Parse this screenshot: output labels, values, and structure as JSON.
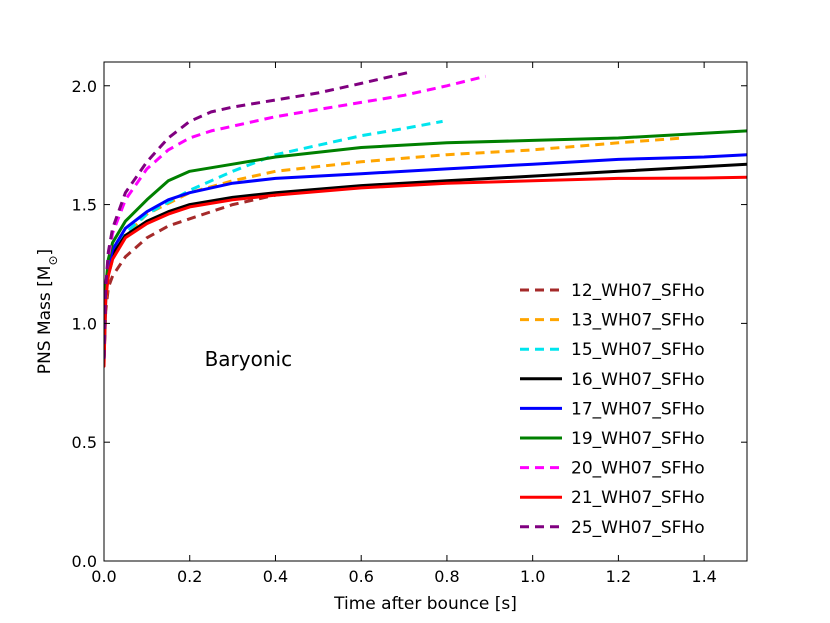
{
  "chart_data": {
    "type": "line",
    "xlabel": "Time after bounce [s]",
    "ylabel": "PNS Mass [M",
    "ylabel_sub": "⊙",
    "ylabel_close": "]",
    "xlim": [
      0,
      1.5
    ],
    "ylim": [
      0,
      2.1
    ],
    "xticks": [
      0.0,
      0.2,
      0.4,
      0.6,
      0.8,
      1.0,
      1.2,
      1.4
    ],
    "xtick_labels": [
      "0.0",
      "0.2",
      "0.4",
      "0.6",
      "0.8",
      "1.0",
      "1.2",
      "1.4"
    ],
    "yticks": [
      0.0,
      0.5,
      1.0,
      1.5,
      2.0
    ],
    "ytick_labels": [
      "0.0",
      "0.5",
      "1.0",
      "1.5",
      "2.0"
    ],
    "grid": false,
    "legend_position": "lower-right",
    "annotation": {
      "text": "Baryonic",
      "x": 0.43,
      "y": 0.85
    },
    "series": [
      {
        "name": "12_WH07_SFHo",
        "color": "#a52a2a",
        "dash": true,
        "x": [
          0,
          0.004,
          0.01,
          0.02,
          0.05,
          0.1,
          0.15,
          0.2,
          0.3,
          0.4,
          0.5
        ],
        "y": [
          0.85,
          1.05,
          1.15,
          1.2,
          1.28,
          1.36,
          1.41,
          1.44,
          1.5,
          1.54,
          1.56
        ]
      },
      {
        "name": "13_WH07_SFHo",
        "color": "#ffa500",
        "dash": true,
        "x": [
          0,
          0.004,
          0.01,
          0.02,
          0.05,
          0.1,
          0.2,
          0.3,
          0.4,
          0.6,
          0.8,
          1.0,
          1.2,
          1.35
        ],
        "y": [
          0.85,
          1.08,
          1.2,
          1.27,
          1.37,
          1.46,
          1.55,
          1.6,
          1.64,
          1.68,
          1.71,
          1.73,
          1.76,
          1.78
        ]
      },
      {
        "name": "15_WH07_SFHo",
        "color": "#00e5ee",
        "dash": true,
        "x": [
          0,
          0.004,
          0.01,
          0.02,
          0.05,
          0.1,
          0.15,
          0.2,
          0.3,
          0.4,
          0.5,
          0.6,
          0.7,
          0.79
        ],
        "y": [
          0.85,
          1.1,
          1.22,
          1.3,
          1.38,
          1.46,
          1.51,
          1.56,
          1.64,
          1.71,
          1.75,
          1.79,
          1.82,
          1.85
        ]
      },
      {
        "name": "16_WH07_SFHo",
        "color": "#000000",
        "dash": false,
        "x": [
          0,
          0.004,
          0.01,
          0.02,
          0.05,
          0.1,
          0.15,
          0.2,
          0.3,
          0.4,
          0.6,
          0.8,
          1.0,
          1.2,
          1.4,
          1.5
        ],
        "y": [
          0.85,
          1.1,
          1.22,
          1.29,
          1.37,
          1.43,
          1.47,
          1.5,
          1.53,
          1.55,
          1.58,
          1.6,
          1.62,
          1.64,
          1.66,
          1.67
        ]
      },
      {
        "name": "17_WH07_SFHo",
        "color": "#0000ff",
        "dash": false,
        "x": [
          0,
          0.004,
          0.01,
          0.02,
          0.05,
          0.1,
          0.15,
          0.2,
          0.3,
          0.4,
          0.6,
          0.8,
          1.0,
          1.2,
          1.4,
          1.5
        ],
        "y": [
          0.85,
          1.12,
          1.24,
          1.31,
          1.4,
          1.47,
          1.52,
          1.55,
          1.59,
          1.61,
          1.63,
          1.65,
          1.67,
          1.69,
          1.7,
          1.71
        ]
      },
      {
        "name": "19_WH07_SFHo",
        "color": "#008000",
        "dash": false,
        "x": [
          0,
          0.004,
          0.01,
          0.02,
          0.05,
          0.1,
          0.15,
          0.2,
          0.3,
          0.4,
          0.6,
          0.8,
          1.0,
          1.2,
          1.4,
          1.5
        ],
        "y": [
          0.85,
          1.15,
          1.27,
          1.34,
          1.43,
          1.52,
          1.6,
          1.64,
          1.67,
          1.7,
          1.74,
          1.76,
          1.77,
          1.78,
          1.8,
          1.81
        ]
      },
      {
        "name": "20_WH07_SFHo",
        "color": "#ff00ff",
        "dash": true,
        "x": [
          0,
          0.004,
          0.01,
          0.02,
          0.05,
          0.1,
          0.15,
          0.2,
          0.25,
          0.3,
          0.4,
          0.5,
          0.6,
          0.7,
          0.8,
          0.89
        ],
        "y": [
          0.85,
          1.15,
          1.28,
          1.38,
          1.52,
          1.65,
          1.73,
          1.78,
          1.81,
          1.83,
          1.87,
          1.9,
          1.93,
          1.96,
          2.0,
          2.04
        ]
      },
      {
        "name": "21_WH07_SFHo",
        "color": "#ff0000",
        "dash": false,
        "x": [
          0,
          0.004,
          0.01,
          0.02,
          0.05,
          0.1,
          0.15,
          0.2,
          0.3,
          0.4,
          0.6,
          0.8,
          1.0,
          1.2,
          1.4,
          1.5
        ],
        "y": [
          0.82,
          1.1,
          1.2,
          1.27,
          1.36,
          1.42,
          1.46,
          1.49,
          1.52,
          1.54,
          1.57,
          1.59,
          1.6,
          1.61,
          1.612,
          1.615
        ]
      },
      {
        "name": "25_WH07_SFHo",
        "color": "#800080",
        "dash": true,
        "x": [
          0,
          0.004,
          0.01,
          0.02,
          0.05,
          0.1,
          0.15,
          0.2,
          0.25,
          0.3,
          0.4,
          0.5,
          0.6,
          0.72
        ],
        "y": [
          0.85,
          1.15,
          1.3,
          1.4,
          1.55,
          1.68,
          1.78,
          1.85,
          1.89,
          1.91,
          1.94,
          1.97,
          2.01,
          2.06
        ]
      }
    ]
  }
}
